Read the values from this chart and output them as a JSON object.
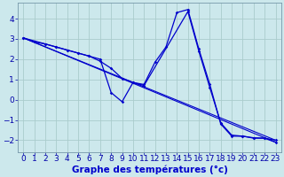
{
  "background_color": "#cce8ec",
  "grid_color": "#aacccc",
  "line_color": "#0000cc",
  "xlabel": "Graphe des températures (°c)",
  "xlabel_color": "#0000cc",
  "xlabel_bg": "#cce8ec",
  "ylim": [
    -2.6,
    4.8
  ],
  "xlim": [
    -0.5,
    23.5
  ],
  "yticks": [
    -2,
    -1,
    0,
    1,
    2,
    3,
    4
  ],
  "xticks": [
    0,
    1,
    2,
    3,
    4,
    5,
    6,
    7,
    8,
    9,
    10,
    11,
    12,
    13,
    14,
    15,
    16,
    17,
    18,
    19,
    20,
    21,
    22,
    23
  ],
  "line1_x": [
    0,
    1,
    2,
    3,
    4,
    5,
    6,
    7,
    8,
    9,
    10,
    11,
    12,
    13,
    14,
    15,
    16,
    17,
    18,
    19,
    20,
    21,
    22,
    23
  ],
  "line1_y": [
    3.05,
    2.85,
    2.75,
    2.6,
    2.45,
    2.3,
    2.15,
    1.9,
    1.55,
    1.05,
    0.85,
    0.75,
    1.85,
    2.6,
    4.3,
    4.45,
    2.5,
    0.75,
    -1.2,
    -1.8,
    -1.8,
    -1.9,
    -1.9,
    -2.1
  ],
  "line2_x": [
    0,
    2,
    3,
    4,
    5,
    6,
    7,
    8,
    9,
    10,
    11,
    15,
    16,
    17,
    18,
    19,
    20,
    21,
    22,
    23
  ],
  "line2_y": [
    3.05,
    2.75,
    2.6,
    2.45,
    2.3,
    2.15,
    2.0,
    0.35,
    -0.1,
    0.85,
    0.7,
    4.35,
    2.4,
    0.6,
    -1.15,
    -1.75,
    -1.8,
    -1.88,
    -1.9,
    -2.0
  ],
  "line3_x": [
    0,
    23
  ],
  "line3_y": [
    3.05,
    -2.0
  ],
  "line4_x": [
    0,
    23
  ],
  "line4_y": [
    3.05,
    -2.1
  ],
  "tick_fontsize": 6.5,
  "label_fontsize": 7.5
}
